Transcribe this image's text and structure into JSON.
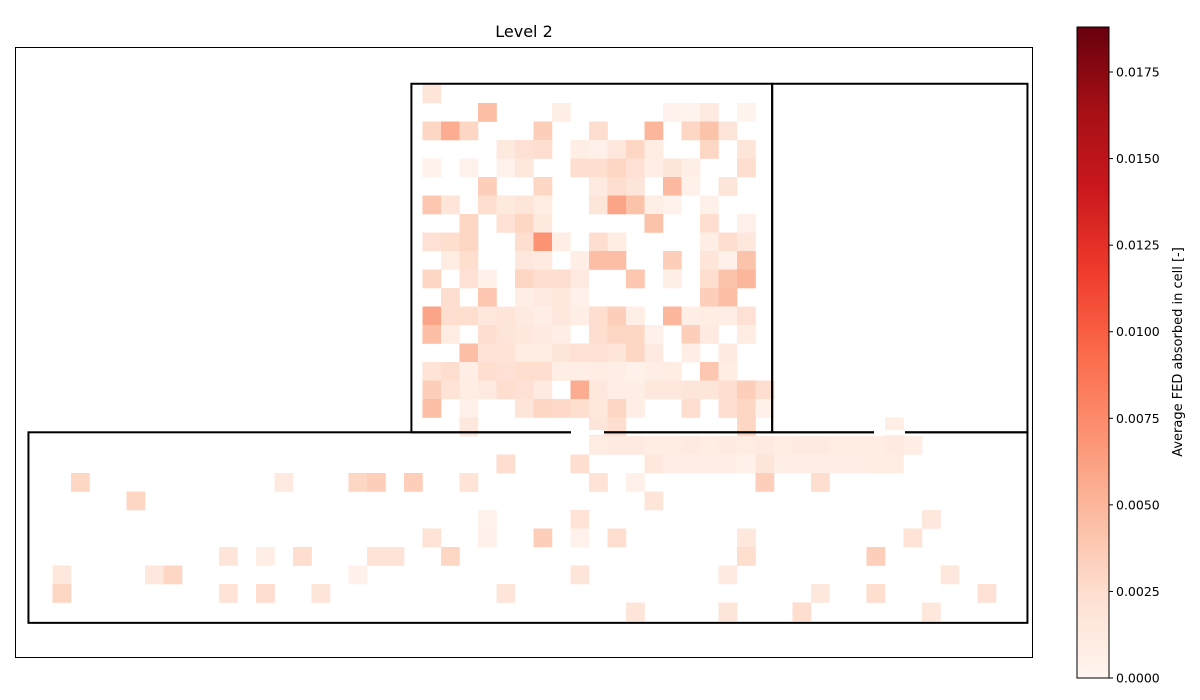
{
  "chart_data": {
    "type": "heatmap",
    "title": "Level 2",
    "colormap": "Reds",
    "colorbar": {
      "label": "Average FED absorbed in cell [-]",
      "range": [
        0,
        0.0188
      ],
      "ticks": [
        "0.0000",
        "0.0025",
        "0.0050",
        "0.0075",
        "0.0100",
        "0.0125",
        "0.0150",
        "0.0175"
      ],
      "tick_values": [
        0,
        0.0025,
        0.005,
        0.0075,
        0.01,
        0.0125,
        0.015,
        0.0175
      ]
    },
    "grid": {
      "cols": 55,
      "rows": 33
    },
    "rooms": [
      {
        "name": "upper-room",
        "x0": 21.4,
        "y0": 1.96,
        "x1": 40.9,
        "y1": 20.8
      },
      {
        "name": "side-room",
        "x0": 40.9,
        "y0": 1.96,
        "x1": 54.7,
        "y1": 20.8
      },
      {
        "name": "corridor",
        "x0": 0.7,
        "y0": 20.8,
        "x1": 54.7,
        "y1": 31.1
      }
    ],
    "cells": [
      [
        22,
        2,
        0.0018
      ],
      [
        25,
        3,
        0.0045
      ],
      [
        29,
        3,
        0.0008
      ],
      [
        35,
        3,
        0.0003
      ],
      [
        36,
        3,
        0.0002
      ],
      [
        37,
        3,
        0.0012
      ],
      [
        39,
        3,
        0.0002
      ],
      [
        22,
        4,
        0.003
      ],
      [
        23,
        4,
        0.0055
      ],
      [
        24,
        4,
        0.003
      ],
      [
        28,
        4,
        0.0035
      ],
      [
        31,
        4,
        0.0025
      ],
      [
        34,
        4,
        0.005
      ],
      [
        36,
        4,
        0.003
      ],
      [
        37,
        4,
        0.0042
      ],
      [
        38,
        4,
        0.0018
      ],
      [
        26,
        5,
        0.0013
      ],
      [
        27,
        5,
        0.0022
      ],
      [
        28,
        5,
        0.0025
      ],
      [
        30,
        5,
        0.0008
      ],
      [
        31,
        5,
        0.0005
      ],
      [
        32,
        5,
        0.0015
      ],
      [
        33,
        5,
        0.003
      ],
      [
        34,
        5,
        0.001
      ],
      [
        37,
        5,
        0.003
      ],
      [
        39,
        5,
        0.0018
      ],
      [
        22,
        6,
        0.0004
      ],
      [
        24,
        6,
        0.0003
      ],
      [
        26,
        6,
        0.0004
      ],
      [
        27,
        6,
        0.0015
      ],
      [
        30,
        6,
        0.0025
      ],
      [
        31,
        6,
        0.0025
      ],
      [
        32,
        6,
        0.003
      ],
      [
        33,
        6,
        0.0022
      ],
      [
        34,
        6,
        0.0008
      ],
      [
        35,
        6,
        0.0018
      ],
      [
        36,
        6,
        0.0008
      ],
      [
        39,
        6,
        0.0025
      ],
      [
        25,
        7,
        0.0035
      ],
      [
        28,
        7,
        0.003
      ],
      [
        31,
        7,
        0.0012
      ],
      [
        32,
        7,
        0.0025
      ],
      [
        33,
        7,
        0.0018
      ],
      [
        35,
        7,
        0.0048
      ],
      [
        36,
        7,
        0.0005
      ],
      [
        38,
        7,
        0.0018
      ],
      [
        22,
        8,
        0.004
      ],
      [
        23,
        8,
        0.0018
      ],
      [
        25,
        8,
        0.0025
      ],
      [
        26,
        8,
        0.0013
      ],
      [
        27,
        8,
        0.0018
      ],
      [
        28,
        8,
        0.001
      ],
      [
        31,
        8,
        0.0018
      ],
      [
        32,
        8,
        0.006
      ],
      [
        33,
        8,
        0.0042
      ],
      [
        34,
        8,
        0.0008
      ],
      [
        35,
        8,
        0.0004
      ],
      [
        37,
        8,
        0.0005
      ],
      [
        24,
        9,
        0.003
      ],
      [
        26,
        9,
        0.0022
      ],
      [
        27,
        9,
        0.003
      ],
      [
        28,
        9,
        0.0013
      ],
      [
        34,
        9,
        0.0042
      ],
      [
        37,
        9,
        0.0025
      ],
      [
        39,
        9,
        0.0005
      ],
      [
        22,
        10,
        0.0022
      ],
      [
        23,
        10,
        0.0025
      ],
      [
        24,
        10,
        0.003
      ],
      [
        27,
        10,
        0.0025
      ],
      [
        28,
        10,
        0.007
      ],
      [
        29,
        10,
        0.0008
      ],
      [
        31,
        10,
        0.0025
      ],
      [
        32,
        10,
        0.001
      ],
      [
        37,
        10,
        0.0008
      ],
      [
        38,
        10,
        0.0025
      ],
      [
        39,
        10,
        0.0015
      ],
      [
        23,
        11,
        0.001
      ],
      [
        24,
        11,
        0.0025
      ],
      [
        27,
        11,
        0.0015
      ],
      [
        28,
        11,
        0.0012
      ],
      [
        30,
        11,
        0.0008
      ],
      [
        31,
        11,
        0.0045
      ],
      [
        32,
        11,
        0.0045
      ],
      [
        35,
        11,
        0.0035
      ],
      [
        37,
        11,
        0.0018
      ],
      [
        38,
        11,
        0.0005
      ],
      [
        39,
        11,
        0.0042
      ],
      [
        22,
        12,
        0.003
      ],
      [
        24,
        12,
        0.0022
      ],
      [
        25,
        12,
        0.0005
      ],
      [
        27,
        12,
        0.003
      ],
      [
        28,
        12,
        0.0025
      ],
      [
        29,
        12,
        0.0025
      ],
      [
        30,
        12,
        0.0012
      ],
      [
        33,
        12,
        0.004
      ],
      [
        35,
        12,
        0.0008
      ],
      [
        37,
        12,
        0.0025
      ],
      [
        38,
        12,
        0.0042
      ],
      [
        39,
        12,
        0.005
      ],
      [
        23,
        13,
        0.0025
      ],
      [
        25,
        13,
        0.004
      ],
      [
        27,
        13,
        0.0008
      ],
      [
        28,
        13,
        0.0012
      ],
      [
        29,
        13,
        0.0015
      ],
      [
        30,
        13,
        0.0005
      ],
      [
        37,
        13,
        0.0035
      ],
      [
        38,
        13,
        0.0045
      ],
      [
        22,
        14,
        0.006
      ],
      [
        23,
        14,
        0.0025
      ],
      [
        24,
        14,
        0.0025
      ],
      [
        25,
        14,
        0.0015
      ],
      [
        26,
        14,
        0.0018
      ],
      [
        27,
        14,
        0.0012
      ],
      [
        28,
        14,
        0.0008
      ],
      [
        29,
        14,
        0.0015
      ],
      [
        30,
        14,
        0.0008
      ],
      [
        31,
        14,
        0.0025
      ],
      [
        32,
        14,
        0.0035
      ],
      [
        33,
        14,
        0.0008
      ],
      [
        35,
        14,
        0.005
      ],
      [
        36,
        14,
        0.0008
      ],
      [
        37,
        14,
        0.001
      ],
      [
        38,
        14,
        0.0008
      ],
      [
        39,
        14,
        0.0022
      ],
      [
        22,
        15,
        0.0045
      ],
      [
        23,
        15,
        0.001
      ],
      [
        25,
        15,
        0.0025
      ],
      [
        26,
        15,
        0.0018
      ],
      [
        27,
        15,
        0.0015
      ],
      [
        28,
        15,
        0.0012
      ],
      [
        29,
        15,
        0.0008
      ],
      [
        31,
        15,
        0.0025
      ],
      [
        32,
        15,
        0.003
      ],
      [
        33,
        15,
        0.003
      ],
      [
        34,
        15,
        0.0005
      ],
      [
        36,
        15,
        0.0035
      ],
      [
        37,
        15,
        0.0012
      ],
      [
        39,
        15,
        0.001
      ],
      [
        24,
        16,
        0.0045
      ],
      [
        25,
        16,
        0.002
      ],
      [
        26,
        16,
        0.002
      ],
      [
        27,
        16,
        0.001
      ],
      [
        28,
        16,
        0.001
      ],
      [
        29,
        16,
        0.0018
      ],
      [
        30,
        16,
        0.0022
      ],
      [
        31,
        16,
        0.0022
      ],
      [
        32,
        16,
        0.0018
      ],
      [
        33,
        16,
        0.003
      ],
      [
        34,
        16,
        0.0012
      ],
      [
        36,
        16,
        0.0008
      ],
      [
        38,
        16,
        0.0012
      ],
      [
        22,
        17,
        0.002
      ],
      [
        23,
        17,
        0.0025
      ],
      [
        24,
        17,
        0.0008
      ],
      [
        25,
        17,
        0.0025
      ],
      [
        26,
        17,
        0.0022
      ],
      [
        27,
        17,
        0.0025
      ],
      [
        28,
        17,
        0.0025
      ],
      [
        29,
        17,
        0.0008
      ],
      [
        30,
        17,
        0.0008
      ],
      [
        31,
        17,
        0.001
      ],
      [
        32,
        17,
        0.0008
      ],
      [
        33,
        17,
        0.0005
      ],
      [
        34,
        17,
        0.0008
      ],
      [
        35,
        17,
        0.001
      ],
      [
        37,
        17,
        0.004
      ],
      [
        38,
        17,
        0.001
      ],
      [
        22,
        18,
        0.0035
      ],
      [
        23,
        18,
        0.002
      ],
      [
        24,
        18,
        0.001
      ],
      [
        25,
        18,
        0.0012
      ],
      [
        26,
        18,
        0.0025
      ],
      [
        27,
        18,
        0.0022
      ],
      [
        28,
        18,
        0.0012
      ],
      [
        30,
        18,
        0.0055
      ],
      [
        31,
        18,
        0.0015
      ],
      [
        32,
        18,
        0.0008
      ],
      [
        33,
        18,
        0.0008
      ],
      [
        34,
        18,
        0.0015
      ],
      [
        35,
        18,
        0.0015
      ],
      [
        36,
        18,
        0.0018
      ],
      [
        37,
        18,
        0.0018
      ],
      [
        38,
        18,
        0.0025
      ],
      [
        39,
        18,
        0.0035
      ],
      [
        40,
        18,
        0.0025
      ],
      [
        22,
        19,
        0.0045
      ],
      [
        24,
        19,
        0.0005
      ],
      [
        27,
        19,
        0.0018
      ],
      [
        28,
        19,
        0.003
      ],
      [
        29,
        19,
        0.0028
      ],
      [
        30,
        19,
        0.0025
      ],
      [
        31,
        19,
        0.0015
      ],
      [
        32,
        19,
        0.003
      ],
      [
        33,
        19,
        0.0008
      ],
      [
        36,
        19,
        0.0025
      ],
      [
        38,
        19,
        0.0025
      ],
      [
        39,
        19,
        0.003
      ],
      [
        40,
        19,
        0.0005
      ],
      [
        24,
        20,
        0.0015
      ],
      [
        31,
        20,
        0.0018
      ],
      [
        32,
        20,
        0.0025
      ],
      [
        39,
        20,
        0.003
      ],
      [
        47,
        20,
        0.0008
      ],
      [
        31,
        21,
        0.001
      ],
      [
        32,
        21,
        0.0012
      ],
      [
        33,
        21,
        0.0012
      ],
      [
        34,
        21,
        0.001
      ],
      [
        35,
        21,
        0.001
      ],
      [
        36,
        21,
        0.0012
      ],
      [
        37,
        21,
        0.001
      ],
      [
        38,
        21,
        0.0012
      ],
      [
        39,
        21,
        0.001
      ],
      [
        40,
        21,
        0.0012
      ],
      [
        41,
        21,
        0.001
      ],
      [
        42,
        21,
        0.0012
      ],
      [
        43,
        21,
        0.0012
      ],
      [
        44,
        21,
        0.001
      ],
      [
        45,
        21,
        0.001
      ],
      [
        46,
        21,
        0.001
      ],
      [
        47,
        21,
        0.0012
      ],
      [
        48,
        21,
        0.0008
      ],
      [
        26,
        22,
        0.0025
      ],
      [
        30,
        22,
        0.0025
      ],
      [
        34,
        22,
        0.0015
      ],
      [
        35,
        22,
        0.0008
      ],
      [
        36,
        22,
        0.0008
      ],
      [
        37,
        22,
        0.0008
      ],
      [
        38,
        22,
        0.0008
      ],
      [
        39,
        22,
        0.0005
      ],
      [
        40,
        22,
        0.0018
      ],
      [
        41,
        22,
        0.0008
      ],
      [
        42,
        22,
        0.0008
      ],
      [
        43,
        22,
        0.0008
      ],
      [
        44,
        22,
        0.0008
      ],
      [
        45,
        22,
        0.0008
      ],
      [
        46,
        22,
        0.001
      ],
      [
        47,
        22,
        0.001
      ],
      [
        3,
        23,
        0.003
      ],
      [
        14,
        23,
        0.0012
      ],
      [
        18,
        23,
        0.003
      ],
      [
        19,
        23,
        0.0035
      ],
      [
        21,
        23,
        0.0035
      ],
      [
        24,
        23,
        0.002
      ],
      [
        31,
        23,
        0.002
      ],
      [
        33,
        23,
        0.0005
      ],
      [
        40,
        23,
        0.0035
      ],
      [
        43,
        23,
        0.0025
      ],
      [
        6,
        24,
        0.003
      ],
      [
        34,
        24,
        0.0018
      ],
      [
        25,
        25,
        0.0003
      ],
      [
        30,
        25,
        0.002
      ],
      [
        49,
        25,
        0.0015
      ],
      [
        22,
        26,
        0.002
      ],
      [
        25,
        26,
        0.0005
      ],
      [
        28,
        26,
        0.0035
      ],
      [
        30,
        26,
        0.0003
      ],
      [
        32,
        26,
        0.0025
      ],
      [
        39,
        26,
        0.0015
      ],
      [
        48,
        26,
        0.002
      ],
      [
        11,
        27,
        0.0018
      ],
      [
        13,
        27,
        0.0008
      ],
      [
        15,
        27,
        0.0025
      ],
      [
        19,
        27,
        0.002
      ],
      [
        20,
        27,
        0.002
      ],
      [
        23,
        27,
        0.003
      ],
      [
        39,
        27,
        0.0025
      ],
      [
        46,
        27,
        0.0035
      ],
      [
        2,
        28,
        0.0015
      ],
      [
        7,
        28,
        0.0015
      ],
      [
        8,
        28,
        0.003
      ],
      [
        18,
        28,
        0.0005
      ],
      [
        30,
        28,
        0.0018
      ],
      [
        38,
        28,
        0.0012
      ],
      [
        50,
        28,
        0.0015
      ],
      [
        2,
        29,
        0.003
      ],
      [
        11,
        29,
        0.002
      ],
      [
        13,
        29,
        0.0025
      ],
      [
        16,
        29,
        0.0018
      ],
      [
        26,
        29,
        0.0018
      ],
      [
        43,
        29,
        0.0015
      ],
      [
        46,
        29,
        0.0025
      ],
      [
        52,
        29,
        0.0022
      ],
      [
        33,
        30,
        0.0018
      ],
      [
        38,
        30,
        0.0018
      ],
      [
        42,
        30,
        0.0025
      ],
      [
        49,
        30,
        0.0015
      ]
    ]
  }
}
